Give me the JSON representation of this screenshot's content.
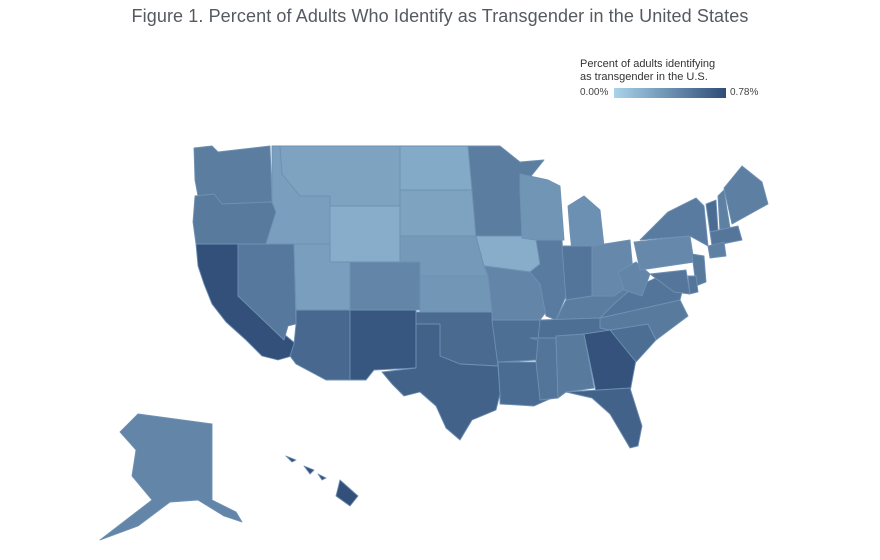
{
  "title": "Figure 1. Percent of Adults Who Identify as Transgender in the United States",
  "legend": {
    "title": "Percent of adults identifying\nas transgender in the U.S.",
    "min_label": "0.00%",
    "max_label": "0.78%",
    "color_low": "#a9d3ea",
    "color_high": "#2f4d77"
  },
  "colors": {
    "outline": "#6f90b3"
  },
  "states": [
    {
      "id": "WA",
      "value": 0.5
    },
    {
      "id": "OR",
      "value": 0.52
    },
    {
      "id": "CA",
      "value": 0.76
    },
    {
      "id": "NV",
      "value": 0.53
    },
    {
      "id": "ID",
      "value": 0.3
    },
    {
      "id": "MT",
      "value": 0.28
    },
    {
      "id": "WY",
      "value": 0.22
    },
    {
      "id": "UT",
      "value": 0.3
    },
    {
      "id": "AZ",
      "value": 0.62
    },
    {
      "id": "CO",
      "value": 0.45
    },
    {
      "id": "NM",
      "value": 0.72
    },
    {
      "id": "ND",
      "value": 0.24
    },
    {
      "id": "SD",
      "value": 0.28
    },
    {
      "id": "NE",
      "value": 0.33
    },
    {
      "id": "KS",
      "value": 0.35
    },
    {
      "id": "OK",
      "value": 0.61
    },
    {
      "id": "TX",
      "value": 0.66
    },
    {
      "id": "MN",
      "value": 0.5
    },
    {
      "id": "IA",
      "value": 0.22
    },
    {
      "id": "MO",
      "value": 0.45
    },
    {
      "id": "AR",
      "value": 0.58
    },
    {
      "id": "LA",
      "value": 0.6
    },
    {
      "id": "WI",
      "value": 0.36
    },
    {
      "id": "IL",
      "value": 0.51
    },
    {
      "id": "MI",
      "value": 0.39
    },
    {
      "id": "IN",
      "value": 0.55
    },
    {
      "id": "OH",
      "value": 0.43
    },
    {
      "id": "KY",
      "value": 0.5
    },
    {
      "id": "TN",
      "value": 0.58
    },
    {
      "id": "MS",
      "value": 0.55
    },
    {
      "id": "AL",
      "value": 0.52
    },
    {
      "id": "GA",
      "value": 0.75
    },
    {
      "id": "FL",
      "value": 0.66
    },
    {
      "id": "SC",
      "value": 0.59
    },
    {
      "id": "NC",
      "value": 0.52
    },
    {
      "id": "VA",
      "value": 0.55
    },
    {
      "id": "WV",
      "value": 0.45
    },
    {
      "id": "PA",
      "value": 0.43
    },
    {
      "id": "NY",
      "value": 0.51
    },
    {
      "id": "ME",
      "value": 0.49
    },
    {
      "id": "VT",
      "value": 0.6
    },
    {
      "id": "NH",
      "value": 0.48
    },
    {
      "id": "MA",
      "value": 0.54
    },
    {
      "id": "CT",
      "value": 0.48
    },
    {
      "id": "NJ",
      "value": 0.52
    },
    {
      "id": "DE",
      "value": 0.55
    },
    {
      "id": "MD",
      "value": 0.54
    },
    {
      "id": "AK",
      "value": 0.45
    },
    {
      "id": "HI",
      "value": 0.76
    }
  ]
}
